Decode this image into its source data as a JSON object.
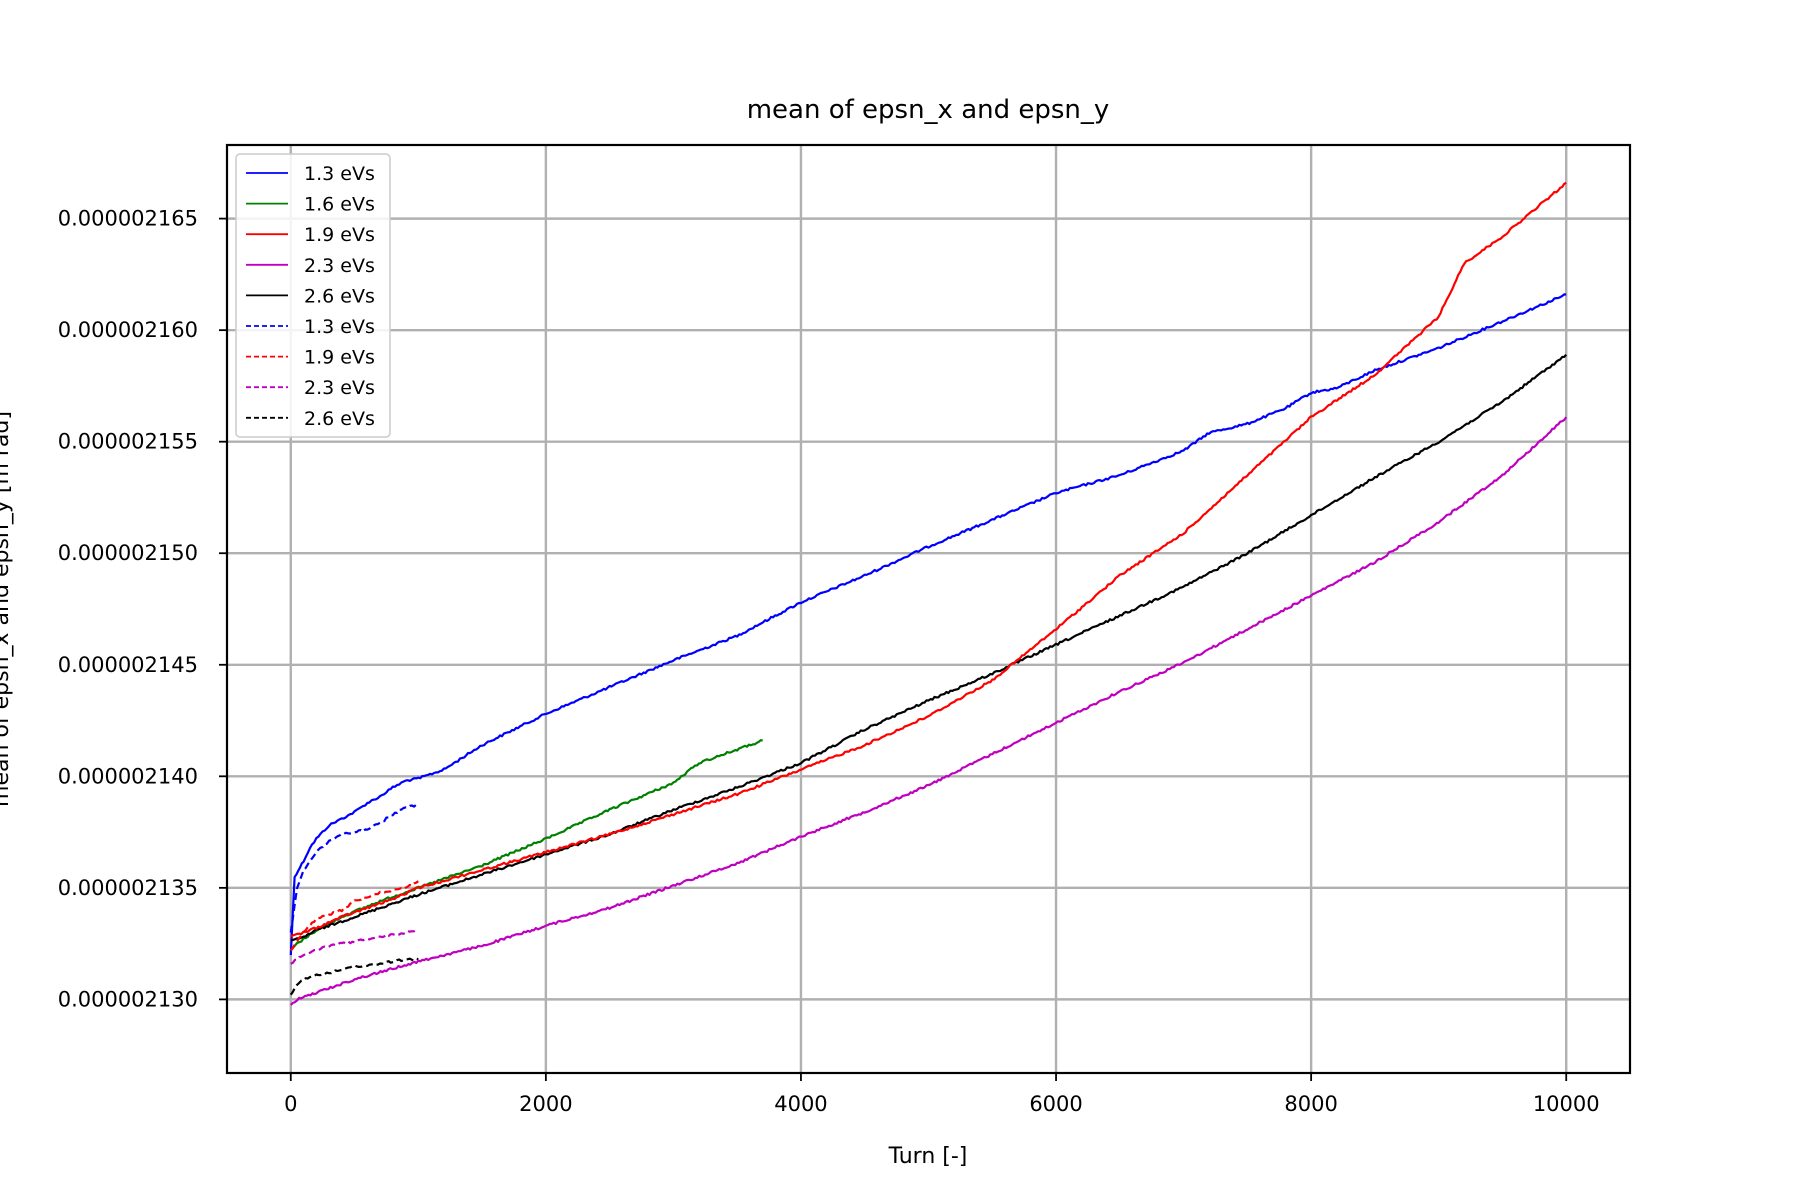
{
  "chart_data": {
    "type": "line",
    "title": "mean of epsn_x and epsn_y",
    "xlabel": "Turn [-]",
    "ylabel": "mean of epsn_x and epsn_y [m rad]",
    "xlim": [
      -500,
      10500
    ],
    "ylim": [
      2.1267e-06,
      2.1683e-06
    ],
    "xticks": [
      0,
      2000,
      4000,
      6000,
      8000,
      10000
    ],
    "xtick_labels": [
      "0",
      "2000",
      "4000",
      "6000",
      "8000",
      "10000"
    ],
    "yticks": [
      2.13e-06,
      2.135e-06,
      2.14e-06,
      2.145e-06,
      2.15e-06,
      2.155e-06,
      2.16e-06,
      2.165e-06
    ],
    "ytick_labels": [
      "0.000002130",
      "0.000002135",
      "0.000002140",
      "0.000002145",
      "0.000002150",
      "0.000002155",
      "0.000002160",
      "0.000002165"
    ],
    "grid": true,
    "legend_position": "top-left",
    "series": [
      {
        "name": "1.3 eVs",
        "color": "#0000ff",
        "dash": "solid",
        "x": [
          0,
          30,
          60,
          100,
          150,
          200,
          300,
          400,
          500,
          600,
          700,
          800,
          900,
          1000,
          1200,
          1500,
          2000,
          2500,
          3000,
          3500,
          4000,
          4500,
          5000,
          5500,
          6000,
          6500,
          7000,
          7200,
          7500,
          7800,
          8000,
          8200,
          8500,
          9000,
          9500,
          10000
        ],
        "y": [
          2.132e-06,
          2.1355e-06,
          2.1358e-06,
          2.1362e-06,
          2.1368e-06,
          2.1372e-06,
          2.1378e-06,
          2.1381e-06,
          2.1384e-06,
          2.1388e-06,
          2.1391e-06,
          2.1395e-06,
          2.1398e-06,
          2.1399e-06,
          2.1403e-06,
          2.1414e-06,
          2.1428e-06,
          2.144e-06,
          2.1452e-06,
          2.1463e-06,
          2.1478e-06,
          2.149e-06,
          2.1503e-06,
          2.1515e-06,
          2.1527e-06,
          2.1535e-06,
          2.1546e-06,
          2.1554e-06,
          2.1558e-06,
          2.1565e-06,
          2.1572e-06,
          2.1574e-06,
          2.1582e-06,
          2.1592e-06,
          2.1604e-06,
          2.1616e-06
        ]
      },
      {
        "name": "1.6 eVs",
        "color": "#008000",
        "dash": "solid",
        "x": [
          0,
          50,
          100,
          200,
          400,
          700,
          1000,
          1500,
          2000,
          2500,
          3000,
          3200,
          3500,
          3700
        ],
        "y": [
          2.1322e-06,
          2.1325e-06,
          2.1327e-06,
          2.1331e-06,
          2.1337e-06,
          2.1344e-06,
          2.135e-06,
          2.136e-06,
          2.1372e-06,
          2.1385e-06,
          2.1397e-06,
          2.1406e-06,
          2.1412e-06,
          2.1416e-06
        ]
      },
      {
        "name": "1.9 eVs",
        "color": "#ff0000",
        "dash": "solid",
        "x": [
          0,
          100,
          200,
          400,
          600,
          800,
          1000,
          1500,
          2000,
          2500,
          3000,
          3500,
          4000,
          4500,
          5000,
          5500,
          6000,
          6500,
          7000,
          7500,
          8000,
          8500,
          9000,
          9200,
          9500,
          10000
        ],
        "y": [
          2.1328e-06,
          2.133e-06,
          2.1332e-06,
          2.1337e-06,
          2.1341e-06,
          2.1345e-06,
          2.135e-06,
          2.1358e-06,
          2.1366e-06,
          2.1374e-06,
          2.1383e-06,
          2.1392e-06,
          2.1403e-06,
          2.1414e-06,
          2.1427e-06,
          2.1443e-06,
          2.1466e-06,
          2.149e-06,
          2.1509e-06,
          2.1535e-06,
          2.1561e-06,
          2.158e-06,
          2.1606e-06,
          2.163e-06,
          2.1642e-06,
          2.1666e-06
        ]
      },
      {
        "name": "2.3 eVs",
        "color": "#bf00bf",
        "dash": "solid",
        "x": [
          0,
          50,
          200,
          500,
          1000,
          1500,
          2000,
          2500,
          3000,
          3500,
          4000,
          4500,
          5000,
          5500,
          6000,
          6500,
          7000,
          7500,
          8000,
          8500,
          9000,
          9500,
          10000
        ],
        "y": [
          2.1297e-06,
          2.13e-06,
          2.1303e-06,
          2.1309e-06,
          2.1317e-06,
          2.1324e-06,
          2.1333e-06,
          2.1341e-06,
          2.1351e-06,
          2.1361e-06,
          2.1373e-06,
          2.1384e-06,
          2.1396e-06,
          2.141e-06,
          2.1424e-06,
          2.1438e-06,
          2.1451e-06,
          2.1466e-06,
          2.1481e-06,
          2.1496e-06,
          2.1514e-06,
          2.1535e-06,
          2.1561e-06
        ]
      },
      {
        "name": "2.6 eVs",
        "color": "#000000",
        "dash": "solid",
        "x": [
          0,
          100,
          200,
          500,
          1000,
          1500,
          2000,
          2500,
          3000,
          3500,
          4000,
          4500,
          5000,
          5500,
          6000,
          6500,
          7000,
          7500,
          8000,
          8500,
          9000,
          9500,
          10000
        ],
        "y": [
          2.1326e-06,
          2.1328e-06,
          2.1331e-06,
          2.1337e-06,
          2.1347e-06,
          2.1356e-06,
          2.1365e-06,
          2.1374e-06,
          2.1385e-06,
          2.1395e-06,
          2.1406e-06,
          2.1421e-06,
          2.1434e-06,
          2.1446e-06,
          2.1459e-06,
          2.1472e-06,
          2.1485e-06,
          2.15e-06,
          2.1517e-06,
          2.1534e-06,
          2.155e-06,
          2.1568e-06,
          2.1589e-06
        ]
      },
      {
        "name": "1.3 eVs",
        "color": "#0000ff",
        "dash": "dashed",
        "x": [
          0,
          50,
          100,
          200,
          300,
          400,
          500,
          600,
          700,
          800,
          900,
          1000
        ],
        "y": [
          2.133e-06,
          2.135e-06,
          2.1358e-06,
          2.1366e-06,
          2.1371e-06,
          2.1374e-06,
          2.1375e-06,
          2.1376e-06,
          2.1379e-06,
          2.1383e-06,
          2.1386e-06,
          2.1387e-06
        ]
      },
      {
        "name": "1.9 eVs",
        "color": "#ff0000",
        "dash": "dashed",
        "x": [
          0,
          100,
          200,
          300,
          400,
          500,
          600,
          700,
          800,
          900,
          1000
        ],
        "y": [
          2.1322e-06,
          2.133e-06,
          2.1336e-06,
          2.1338e-06,
          2.134e-06,
          2.1344e-06,
          2.1346e-06,
          2.1348e-06,
          2.1349e-06,
          2.135e-06,
          2.1353e-06
        ]
      },
      {
        "name": "2.3 eVs",
        "color": "#bf00bf",
        "dash": "dashed",
        "x": [
          0,
          100,
          200,
          300,
          400,
          500,
          600,
          700,
          800,
          900,
          1000
        ],
        "y": [
          2.1316e-06,
          2.132e-06,
          2.1322e-06,
          2.1324e-06,
          2.1325e-06,
          2.1326e-06,
          2.1327e-06,
          2.1328e-06,
          2.1329e-06,
          2.133e-06,
          2.1331e-06
        ]
      },
      {
        "name": "2.6 eVs",
        "color": "#000000",
        "dash": "dashed",
        "x": [
          0,
          50,
          100,
          200,
          300,
          400,
          500,
          600,
          700,
          800,
          900,
          1000
        ],
        "y": [
          2.1302e-06,
          2.1307e-06,
          2.1309e-06,
          2.1311e-06,
          2.1312e-06,
          2.1313e-06,
          2.1315e-06,
          2.1315e-06,
          2.1316e-06,
          2.1317e-06,
          2.1318e-06,
          2.1318e-06
        ]
      }
    ]
  }
}
